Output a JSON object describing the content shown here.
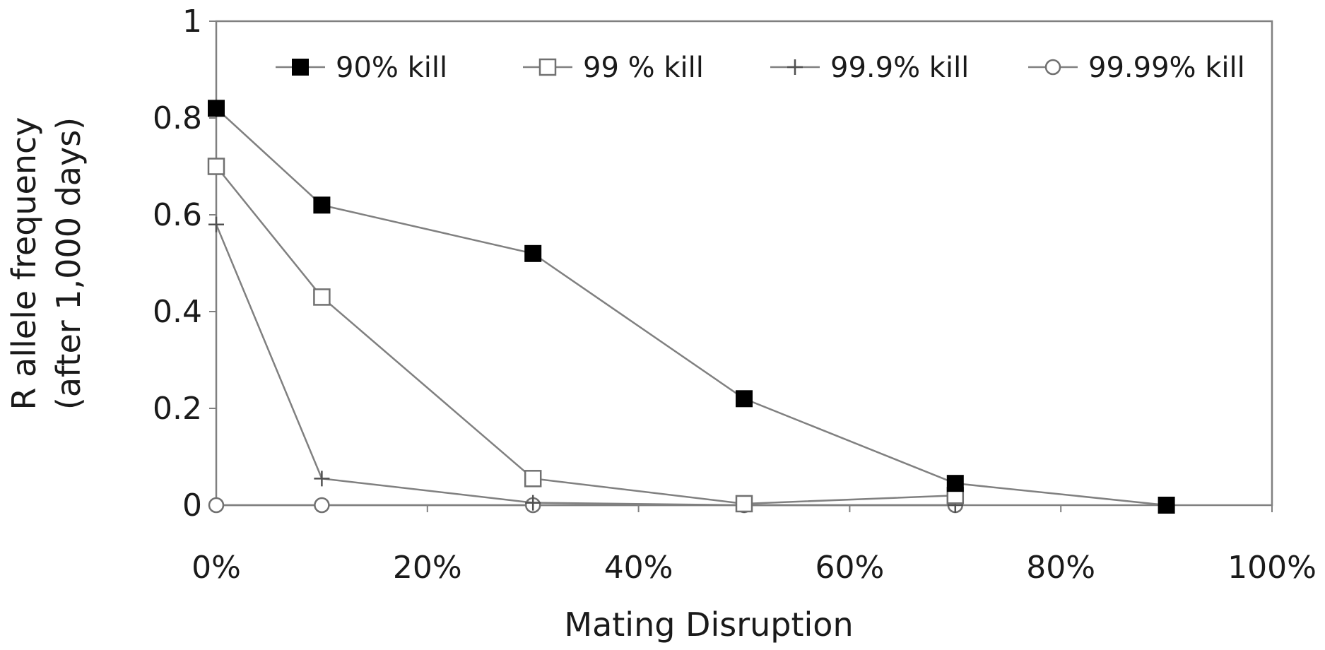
{
  "chart_data": {
    "type": "line",
    "title": "",
    "xlabel": "Mating Disruption",
    "ylabel_line1": "R allele frequency",
    "ylabel_line2": "(after 1,000 days)",
    "x_tick_labels": [
      "0%",
      "20%",
      "40%",
      "60%",
      "80%",
      "100%"
    ],
    "y_tick_labels": [
      "0",
      "0.2",
      "0.4",
      "0.6",
      "0.8",
      "1"
    ],
    "xlim": [
      0,
      100
    ],
    "ylim": [
      0,
      1
    ],
    "x_ticks": [
      0,
      20,
      40,
      60,
      80,
      100
    ],
    "y_ticks": [
      0,
      0.2,
      0.4,
      0.6,
      0.8,
      1
    ],
    "grid": false,
    "legend_position": "top",
    "series": [
      {
        "name": "90% kill",
        "marker": "filled-square",
        "color": "#000000",
        "x": [
          0,
          10,
          30,
          50,
          70,
          90
        ],
        "values": [
          0.82,
          0.62,
          0.52,
          0.22,
          0.045,
          0.0
        ]
      },
      {
        "name": "99 % kill",
        "marker": "open-square",
        "color": "#808080",
        "x": [
          0,
          10,
          30,
          50,
          70
        ],
        "values": [
          0.7,
          0.43,
          0.055,
          0.003,
          0.02
        ]
      },
      {
        "name": "99.9% kill",
        "marker": "plus",
        "color": "#808080",
        "x": [
          0,
          10,
          30,
          50,
          70
        ],
        "values": [
          0.58,
          0.055,
          0.005,
          0.0,
          0.0
        ]
      },
      {
        "name": "99.99% kill",
        "marker": "open-circle",
        "color": "#808080",
        "x": [
          0,
          10,
          30,
          50,
          70
        ],
        "values": [
          0.0,
          0.0,
          0.0,
          0.0,
          0.0
        ]
      }
    ]
  }
}
